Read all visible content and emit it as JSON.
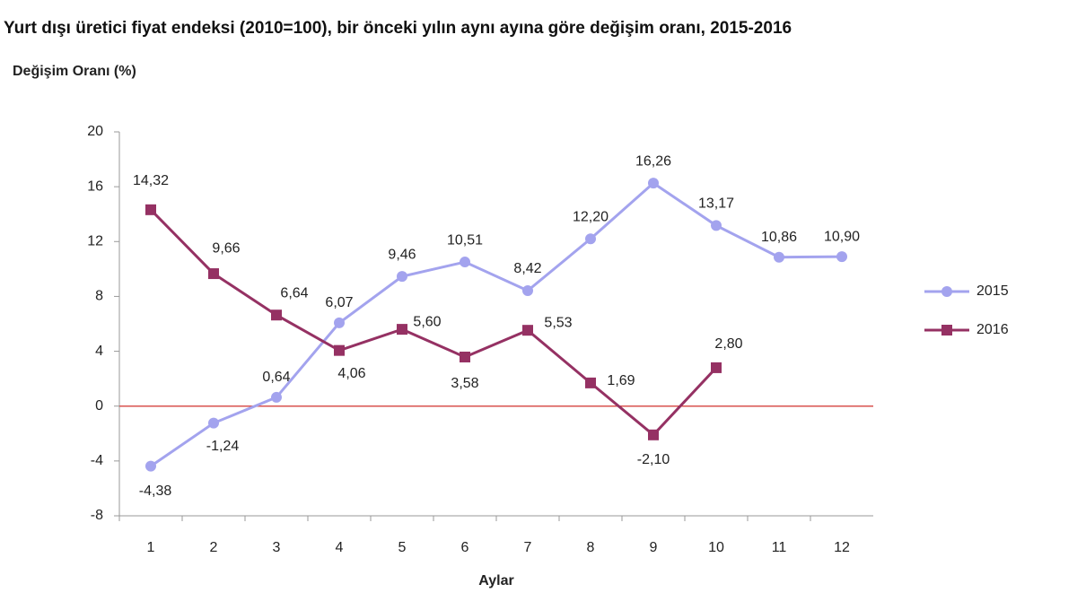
{
  "chart_data": {
    "type": "line",
    "title": "Yurt dışı üretici fiyat endeksi (2010=100), bir önceki yılın aynı ayına göre değişim oranı, 2015-2016",
    "y_label": "Değişim Oranı (%)",
    "x_label": "Aylar",
    "categories": [
      "1",
      "2",
      "3",
      "4",
      "5",
      "6",
      "7",
      "8",
      "9",
      "10",
      "11",
      "12"
    ],
    "series": [
      {
        "name": "2015",
        "color": "#a3a3ee",
        "marker": "circle",
        "values": [
          -4.38,
          -1.24,
          0.64,
          6.07,
          9.46,
          10.51,
          8.42,
          12.2,
          16.26,
          13.17,
          10.86,
          10.9
        ],
        "value_labels": [
          "-4,38",
          "-1,24",
          "0,64",
          "6,07",
          "9,46",
          "10,51",
          "8,42",
          "12,20",
          "16,26",
          "13,17",
          "10,86",
          "10,90"
        ]
      },
      {
        "name": "2016",
        "color": "#953163",
        "marker": "square",
        "values": [
          14.32,
          9.66,
          6.64,
          4.06,
          5.6,
          3.58,
          5.53,
          1.69,
          -2.1,
          2.8,
          null,
          null
        ],
        "value_labels": [
          "14,32",
          "9,66",
          "6,64",
          "4,06",
          "5,60",
          "3,58",
          "5,53",
          "1,69",
          "-2,10",
          "2,80",
          null,
          null
        ]
      }
    ],
    "ylim": [
      -8,
      20
    ],
    "yticks": [
      -8,
      -4,
      0,
      4,
      8,
      12,
      16,
      20
    ],
    "grid": false,
    "reference_line": {
      "value": 0,
      "color": "#d9534f"
    },
    "legend": "right"
  }
}
